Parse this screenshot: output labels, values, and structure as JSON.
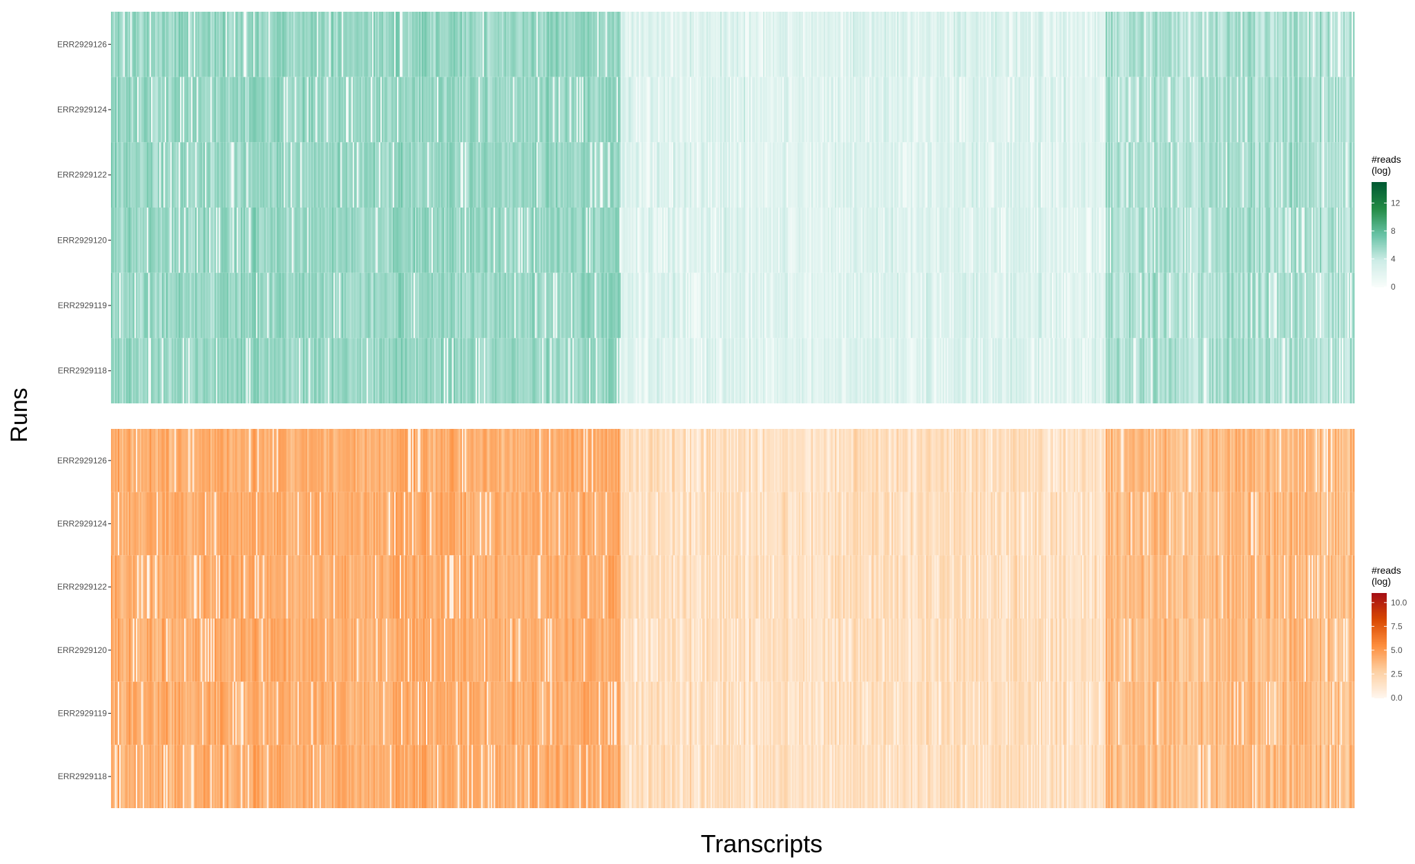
{
  "xlabel": "Transcripts",
  "ylabel": "Runs",
  "chart_data": [
    {
      "type": "heatmap",
      "panel": "top",
      "rows": [
        "ERR2929126",
        "ERR2929124",
        "ERR2929122",
        "ERR2929120",
        "ERR2929119",
        "ERR2929118"
      ],
      "x_tick_labels": false,
      "legend": {
        "title_lines": [
          "#reads",
          "(log)"
        ],
        "ticks": [
          0,
          4,
          8,
          12
        ],
        "tick_labels": [
          "0",
          "4",
          "8",
          "12"
        ],
        "range": [
          0,
          15
        ],
        "colors": [
          "#f7fcfa",
          "#ccece6",
          "#66c2a4",
          "#238b45",
          "#005a32"
        ],
        "placement": "right"
      },
      "column_profile_note": "high values in left ~41% of transcripts and right ~20%, low in middle"
    },
    {
      "type": "heatmap",
      "panel": "bottom",
      "rows": [
        "ERR2929126",
        "ERR2929124",
        "ERR2929122",
        "ERR2929120",
        "ERR2929119",
        "ERR2929118"
      ],
      "x_tick_labels": false,
      "legend": {
        "title_lines": [
          "#reads",
          "(log)"
        ],
        "ticks": [
          0.0,
          2.5,
          5.0,
          7.5,
          10.0
        ],
        "tick_labels": [
          "0.0",
          "2.5",
          "5.0",
          "7.5",
          "10.0"
        ],
        "range": [
          0,
          11
        ],
        "colors": [
          "#fff5eb",
          "#fdd0a2",
          "#fd8d3c",
          "#d94801",
          "#a50f15"
        ],
        "placement": "right"
      }
    }
  ]
}
